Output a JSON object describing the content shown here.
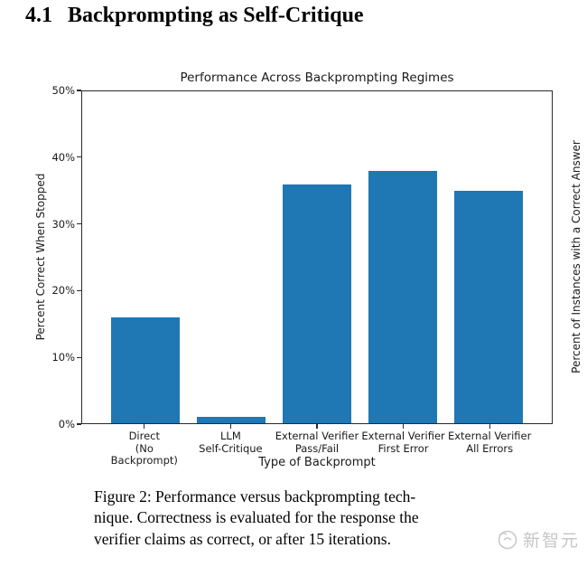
{
  "section": {
    "number": "4.1",
    "title": "Backprompting as Self-Critique"
  },
  "chart_data": {
    "type": "bar",
    "title": "Performance Across Backprompting Regimes",
    "categories": [
      "Direct\n(No Backprompt)",
      "LLM\nSelf-Critique",
      "External Verifier\nPass/Fail",
      "External Verifier\nFirst Error",
      "External Verifier\nAll Errors"
    ],
    "values": [
      16,
      1,
      36,
      38,
      35
    ],
    "xlabel": "Type of Backprompt",
    "ylabel": "Percent Correct When Stopped",
    "ylabel_right": "Percent of Instances with a Correct Answer",
    "ylim": [
      0,
      50
    ],
    "y_ticks": [
      0,
      10,
      20,
      30,
      40,
      50
    ],
    "y_tick_suffix": "%",
    "bar_color": "#1f77b4",
    "grid": false,
    "legend": "none"
  },
  "caption": {
    "lines": [
      "Figure 2: Performance versus backprompting tech-",
      "nique. Correctness is evaluated for the response the",
      "verifier claims as correct, or after 15 iterations."
    ]
  },
  "watermark": {
    "text": "新智元"
  }
}
